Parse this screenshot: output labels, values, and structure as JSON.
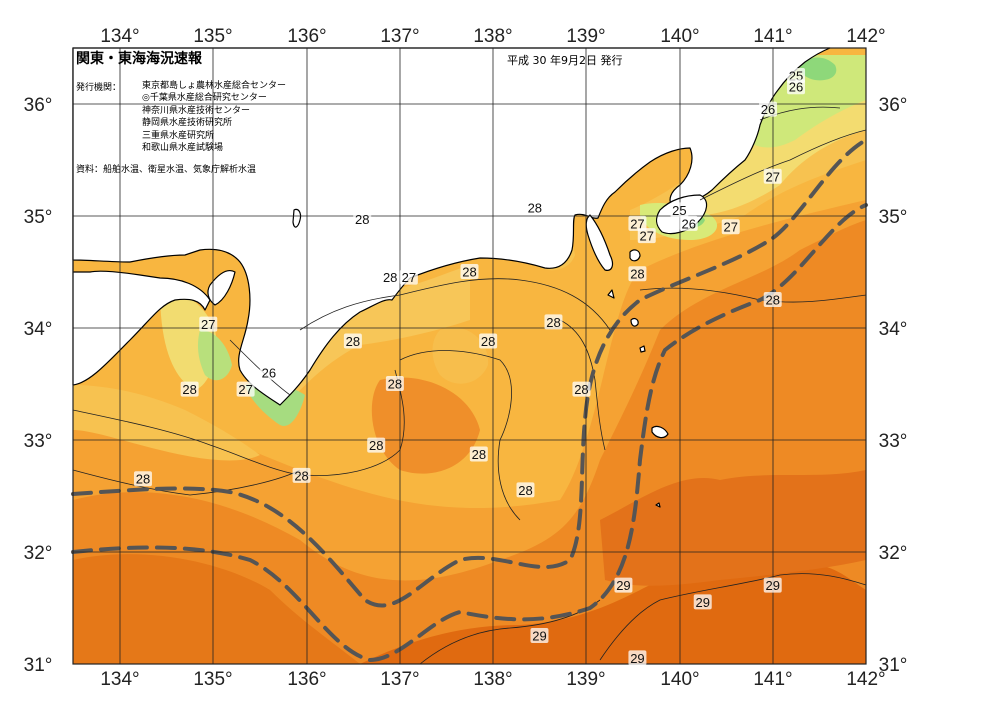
{
  "title": "関東・東海海況速報",
  "issued": "平成 30 年9月2日 発行",
  "issuers_label": "発行機関：",
  "issuers": [
    "東京都島しょ農林水産総合センター",
    "◎千葉県水産総合研究センター",
    "神奈川県水産技術センター",
    "静岡県水産技術研究所",
    "三重県水産研究所",
    "和歌山県水産試験場"
  ],
  "sources": "資料：船舶水温、衛星水温、気象庁解析水温",
  "axes": {
    "lon_labels": [
      "134°",
      "135°",
      "136°",
      "137°",
      "138°",
      "139°",
      "140°",
      "141°",
      "142°"
    ],
    "lat_labels": [
      "36°",
      "35°",
      "34°",
      "33°",
      "32°",
      "31°"
    ]
  },
  "map": {
    "type": "sea surface temperature map",
    "lon_range": [
      133.5,
      142.0
    ],
    "lat_range": [
      31.0,
      36.5
    ],
    "grid": true,
    "kuroshio_axis_dashed": true
  },
  "contour_labels": [
    {
      "text": "25",
      "lon": 141.25,
      "lat": 36.25
    },
    {
      "text": "26",
      "lon": 141.25,
      "lat": 36.15
    },
    {
      "text": "26",
      "lon": 140.95,
      "lat": 35.95
    },
    {
      "text": "27",
      "lon": 141.0,
      "lat": 35.35
    },
    {
      "text": "25",
      "lon": 140.0,
      "lat": 35.05
    },
    {
      "text": "26",
      "lon": 140.1,
      "lat": 34.93
    },
    {
      "text": "27",
      "lon": 140.55,
      "lat": 34.9
    },
    {
      "text": "27",
      "lon": 139.55,
      "lat": 34.93
    },
    {
      "text": "27",
      "lon": 139.65,
      "lat": 34.82
    },
    {
      "text": "28",
      "lon": 138.45,
      "lat": 35.07
    },
    {
      "text": "28",
      "lon": 139.55,
      "lat": 34.48
    },
    {
      "text": "28",
      "lon": 141.0,
      "lat": 34.25
    },
    {
      "text": "28",
      "lon": 136.6,
      "lat": 34.97
    },
    {
      "text": "28",
      "lon": 136.9,
      "lat": 34.45
    },
    {
      "text": "27",
      "lon": 137.1,
      "lat": 34.45
    },
    {
      "text": "28",
      "lon": 137.75,
      "lat": 34.5
    },
    {
      "text": "28",
      "lon": 138.65,
      "lat": 34.05
    },
    {
      "text": "28",
      "lon": 136.5,
      "lat": 33.88
    },
    {
      "text": "28",
      "lon": 137.95,
      "lat": 33.88
    },
    {
      "text": "28",
      "lon": 136.95,
      "lat": 33.5
    },
    {
      "text": "28",
      "lon": 138.95,
      "lat": 33.45
    },
    {
      "text": "27",
      "lon": 134.95,
      "lat": 34.03
    },
    {
      "text": "26",
      "lon": 135.6,
      "lat": 33.6
    },
    {
      "text": "27",
      "lon": 135.35,
      "lat": 33.45
    },
    {
      "text": "28",
      "lon": 134.75,
      "lat": 33.45
    },
    {
      "text": "28",
      "lon": 136.75,
      "lat": 32.95
    },
    {
      "text": "28",
      "lon": 137.85,
      "lat": 32.87
    },
    {
      "text": "28",
      "lon": 138.35,
      "lat": 32.55
    },
    {
      "text": "28",
      "lon": 135.95,
      "lat": 32.68
    },
    {
      "text": "28",
      "lon": 134.25,
      "lat": 32.65
    },
    {
      "text": "29",
      "lon": 139.4,
      "lat": 31.7
    },
    {
      "text": "29",
      "lon": 140.25,
      "lat": 31.55
    },
    {
      "text": "29",
      "lon": 141.0,
      "lat": 31.7
    },
    {
      "text": "29",
      "lon": 138.5,
      "lat": 31.25
    },
    {
      "text": "29",
      "lon": 139.55,
      "lat": 31.05
    }
  ],
  "colors": {
    "ocean_base": "#f5a233",
    "warm_29": "#e06a10",
    "warm_28": "#ee8a24",
    "light_27": "#f7bb45",
    "pale_26": "#f8d862",
    "yellowgreen_25": "#cfea70",
    "green_24": "#8ed87a",
    "land": "#ffffff",
    "grid": "#222222",
    "kuroshio_line": "#555555"
  }
}
